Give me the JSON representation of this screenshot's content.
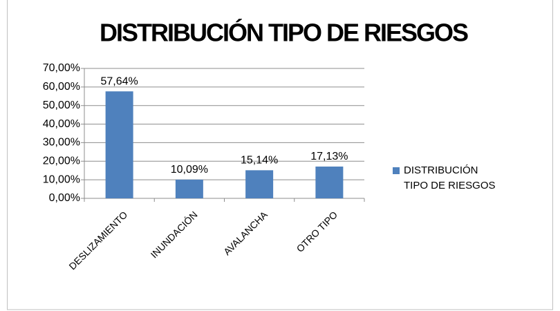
{
  "chart_data": {
    "type": "bar",
    "title": "DISTRIBUCIÓN TIPO DE RIESGOS",
    "categories": [
      "DESLIZAMIENTO",
      "INUNDACIÓN",
      "AVALANCHA",
      "OTRO TIPO"
    ],
    "series": [
      {
        "name": "DISTRIBUCIÓN TIPO DE RIESGOS",
        "color": "#4f81bd",
        "values": [
          57.64,
          10.09,
          15.14,
          17.13
        ],
        "value_labels": [
          "57,64%",
          "10,09%",
          "15,14%",
          "17,13%"
        ]
      }
    ],
    "ylim": [
      0,
      70
    ],
    "yticks": [
      {
        "value": 0,
        "label": "0,00%"
      },
      {
        "value": 10,
        "label": "10,00%"
      },
      {
        "value": 20,
        "label": "20,00%"
      },
      {
        "value": 30,
        "label": "30,00%"
      },
      {
        "value": 40,
        "label": "40,00%"
      },
      {
        "value": 50,
        "label": "50,00%"
      },
      {
        "value": 60,
        "label": "60,00%"
      },
      {
        "value": 70,
        "label": "70,00%"
      }
    ],
    "grid": true,
    "legend": "right"
  }
}
